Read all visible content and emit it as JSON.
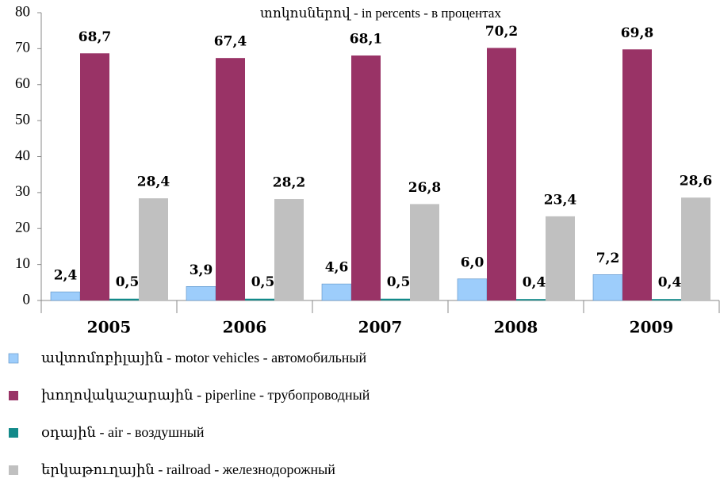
{
  "chart_data": {
    "type": "bar",
    "title": "տոկոսներով - in percents - в процентах",
    "categories": [
      "2005",
      "2006",
      "2007",
      "2008",
      "2009"
    ],
    "series": [
      {
        "name": "ավտոմոբիլային - motor vehicles - автомобильный",
        "color": "#9dcdfb",
        "values": [
          2.4,
          3.9,
          4.6,
          6.0,
          7.2
        ],
        "value_labels": [
          "2,4",
          "3,9",
          "4,6",
          "6,0",
          "7,2"
        ]
      },
      {
        "name": "խողովակաշարային - piperline - трубопроводный",
        "color": "#993366",
        "values": [
          68.7,
          67.4,
          68.1,
          70.2,
          69.8
        ],
        "value_labels": [
          "68,7",
          "67,4",
          "68,1",
          "70,2",
          "69,8"
        ]
      },
      {
        "name": "օդային - air - воздушный",
        "color": "#138a8a",
        "values": [
          0.5,
          0.5,
          0.5,
          0.4,
          0.4
        ],
        "value_labels": [
          "0,5",
          "0,5",
          "0,5",
          "0,4",
          "0,4"
        ]
      },
      {
        "name": "երկաթուղային - railroad - железнодорожный",
        "color": "#c0c0c0",
        "values": [
          28.4,
          28.2,
          26.8,
          23.4,
          28.6
        ],
        "value_labels": [
          "28,4",
          "28,2",
          "26,8",
          "23,4",
          "28,6"
        ]
      }
    ],
    "ylim": [
      0,
      80
    ],
    "yticks": [
      0,
      10,
      20,
      30,
      40,
      50,
      60,
      70,
      80
    ],
    "grid": false
  }
}
